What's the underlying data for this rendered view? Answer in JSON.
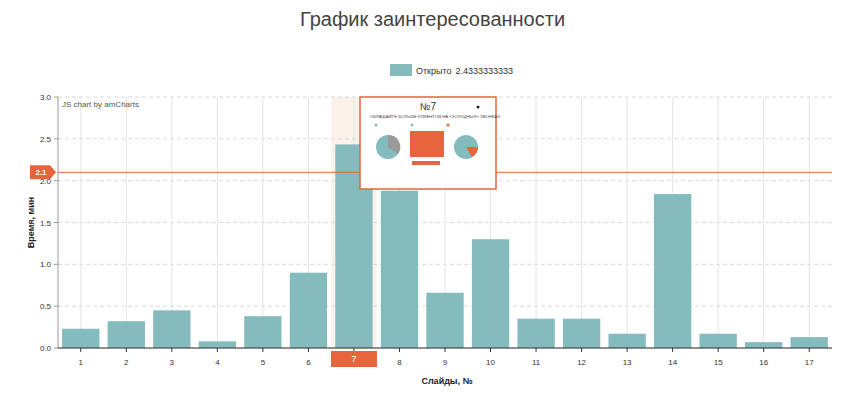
{
  "chart_data": {
    "type": "bar",
    "title": "График заинтересованности",
    "x_label": "Слайды, №",
    "y_label": "Время, мин",
    "watermark": "JS chart by amCharts",
    "categories": [
      "1",
      "2",
      "3",
      "4",
      "5",
      "6",
      "7",
      "8",
      "9",
      "10",
      "11",
      "12",
      "13",
      "14",
      "15",
      "16",
      "17"
    ],
    "series": [
      {
        "name": "Открыто",
        "color": "#84bcbe",
        "values": [
          0.23,
          0.32,
          0.45,
          0.08,
          0.38,
          0.9,
          2.4333333333,
          1.88,
          0.66,
          1.3,
          0.35,
          0.35,
          0.17,
          1.84,
          0.17,
          0.07,
          0.13
        ]
      }
    ],
    "legend_value": "2.4333333333",
    "ylim": [
      0,
      3
    ],
    "yticks": [
      {
        "value": 0,
        "label": "0.0"
      },
      0.5,
      {
        "value": 1,
        "label": "1.0"
      },
      1.5,
      {
        "value": 2,
        "label": "2.0"
      },
      2.5,
      {
        "value": 3,
        "label": "3.0"
      }
    ],
    "grid": true,
    "legend": "top",
    "annotations": [
      {
        "text": "2.1",
        "y": 2.1,
        "color": "#e8643d"
      }
    ],
    "highlight_category": "7",
    "popup": {
      "title": "№7",
      "heading": "ОБРАЩАЙТЕ БОЛЬШЕ КЛИЕНТОВ НА «ХОЛОДНЫХ» ЗВОНКАХ"
    }
  }
}
